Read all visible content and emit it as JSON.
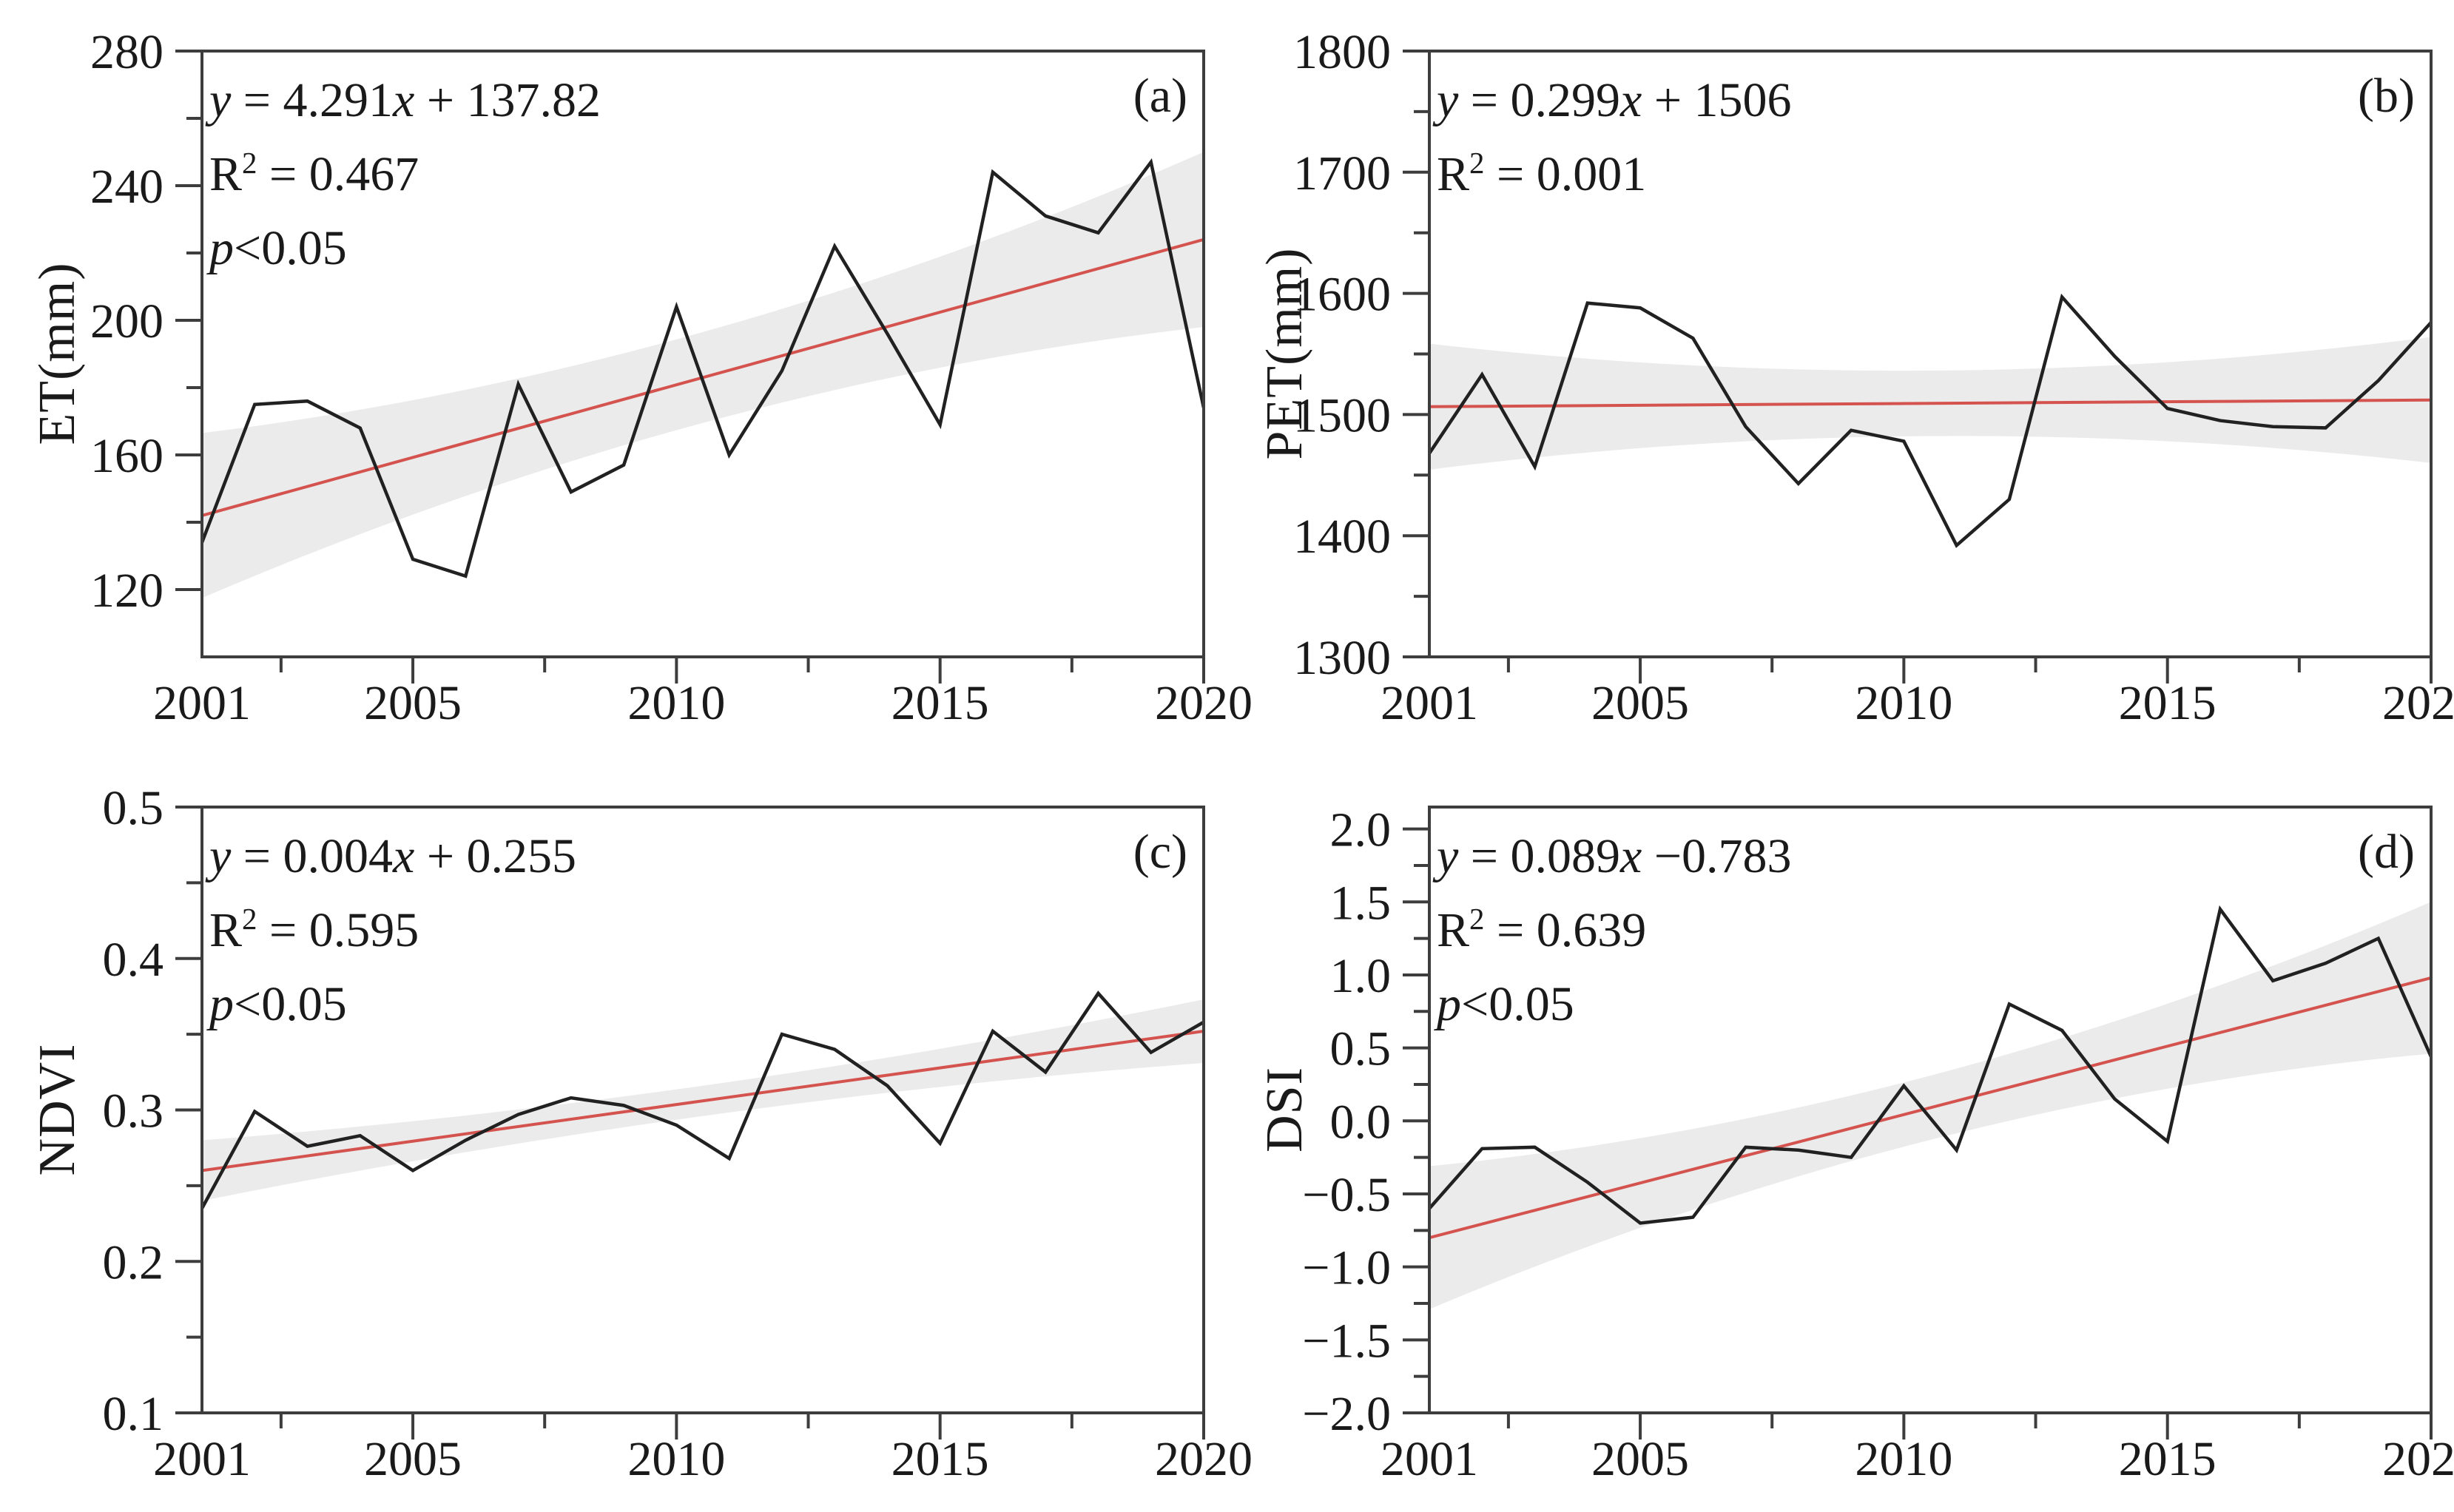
{
  "figure": {
    "background": "#ffffff",
    "colors": {
      "data_line": "#212121",
      "trend_line": "#d4534e",
      "band_fill": "#ebebeb",
      "axis": "#3d3d3d",
      "text": "#1a1a1a"
    }
  },
  "x_axis": {
    "years": [
      2001,
      2002,
      2003,
      2004,
      2005,
      2006,
      2007,
      2008,
      2009,
      2010,
      2011,
      2012,
      2013,
      2014,
      2015,
      2016,
      2017,
      2018,
      2019,
      2020
    ],
    "range": [
      2001,
      2020
    ],
    "tick_labels": [
      "2001",
      "2005",
      "2010",
      "2015",
      "2020"
    ],
    "tick_label_years": [
      2001,
      2005,
      2010,
      2015,
      2020
    ],
    "major_tick_years": [
      2005,
      2010,
      2015,
      2020
    ],
    "minor_tick_years": [
      2002.5,
      2007.5,
      2012.5,
      2017.5
    ]
  },
  "chart_data": [
    {
      "id": "a",
      "type": "line",
      "label": "(a)",
      "y_label": "ET(mm)",
      "ylim": [
        100,
        280
      ],
      "y_major_ticks": [
        120,
        160,
        200,
        240,
        280
      ],
      "y_tick_labels": [
        "120",
        "160",
        "200",
        "240",
        "280"
      ],
      "y_minor_ticks": [
        140,
        180,
        220,
        260
      ],
      "series": [
        {
          "name": "ET(mm)",
          "values": [
            134,
            175,
            176,
            168,
            129,
            124,
            181,
            149,
            157,
            204,
            160,
            185,
            222,
            196,
            169,
            244,
            231,
            226,
            247,
            174
          ]
        }
      ],
      "trend": {
        "start": 142,
        "end": 224
      },
      "band": {
        "start": 24.5,
        "mid": 13.5,
        "end": 26
      },
      "annotation": {
        "eq_y": "y",
        "eq_mid": " = 4.291",
        "eq_x": "x",
        "eq_post": " + 137.82",
        "r2_base": "R",
        "r2_sup": "2",
        "r2_rest": " = 0.467",
        "p_var": "p",
        "p_rest": "<0.05"
      }
    },
    {
      "id": "b",
      "type": "line",
      "label": "(b)",
      "y_label": "PET(mm)",
      "ylim": [
        1300,
        1800
      ],
      "y_major_ticks": [
        1300,
        1400,
        1500,
        1600,
        1700,
        1800
      ],
      "y_tick_labels": [
        "1300",
        "1400",
        "1500",
        "1600",
        "1700",
        "1800"
      ],
      "y_minor_ticks": [
        1350,
        1450,
        1550,
        1650,
        1750
      ],
      "series": [
        {
          "name": "PET(mm)",
          "values": [
            1468,
            1533,
            1457,
            1592,
            1588,
            1563,
            1490,
            1443,
            1487,
            1478,
            1392,
            1430,
            1597,
            1548,
            1505,
            1495,
            1490,
            1489,
            1528,
            1576
          ]
        }
      ],
      "trend": {
        "start": 1506.5,
        "end": 1512
      },
      "band": {
        "start": 52,
        "mid": 27,
        "end": 52
      },
      "annotation": {
        "eq_y": "y",
        "eq_mid": " = 0.299",
        "eq_x": "x",
        "eq_post": " + 1506",
        "r2_base": "R",
        "r2_sup": "2",
        "r2_rest": " = 0.001"
      }
    },
    {
      "id": "c",
      "type": "line",
      "label": "(c)",
      "y_label": "NDVI",
      "ylim": [
        0.1,
        0.5
      ],
      "y_major_ticks": [
        0.1,
        0.2,
        0.3,
        0.4,
        0.5
      ],
      "y_tick_labels": [
        "0.1",
        "0.2",
        "0.3",
        "0.4",
        "0.5"
      ],
      "y_minor_ticks": [
        0.15,
        0.25,
        0.35,
        0.45
      ],
      "series": [
        {
          "name": "NDVI",
          "values": [
            0.235,
            0.299,
            0.276,
            0.283,
            0.26,
            0.28,
            0.297,
            0.308,
            0.303,
            0.29,
            0.268,
            0.35,
            0.34,
            0.316,
            0.278,
            0.352,
            0.325,
            0.377,
            0.338,
            0.358
          ]
        }
      ],
      "trend": {
        "start": 0.26,
        "end": 0.352
      },
      "band": {
        "start": 0.02,
        "mid": 0.01,
        "end": 0.021
      },
      "annotation": {
        "eq_y": "y",
        "eq_mid": " = 0.004",
        "eq_x": "x",
        "eq_post": " + 0.255",
        "r2_base": "R",
        "r2_sup": "2",
        "r2_rest": " = 0.595",
        "p_var": "p",
        "p_rest": "<0.05"
      }
    },
    {
      "id": "d",
      "type": "line",
      "label": "(d)",
      "y_label": "DSI",
      "ylim": [
        -2.0,
        2.15
      ],
      "y_major_ticks": [
        -2.0,
        -1.5,
        -1.0,
        -0.5,
        0.0,
        0.5,
        1.0,
        1.5,
        2.0
      ],
      "y_tick_labels": [
        "−2.0",
        "−1.5",
        "−1.0",
        "−0.5",
        "0.0",
        "0.5",
        "1.0",
        "1.5",
        "2.0"
      ],
      "y_minor_ticks": [
        -1.75,
        -1.25,
        -0.75,
        -0.25,
        0.25,
        0.75,
        1.25,
        1.75
      ],
      "series": [
        {
          "name": "DSI",
          "values": [
            -0.6,
            -0.19,
            -0.18,
            -0.42,
            -0.7,
            -0.66,
            -0.18,
            -0.2,
            -0.25,
            0.24,
            -0.2,
            0.8,
            0.62,
            0.15,
            -0.14,
            1.45,
            0.96,
            1.08,
            1.25,
            0.44
          ]
        }
      ],
      "trend": {
        "start": -0.8,
        "end": 0.98
      },
      "band": {
        "start": 0.49,
        "mid": 0.22,
        "end": 0.52
      },
      "annotation": {
        "eq_y": "y",
        "eq_mid": " = 0.089",
        "eq_x": "x",
        "eq_post": " −0.783",
        "r2_base": "R",
        "r2_sup": "2",
        "r2_rest": " = 0.639",
        "p_var": "p",
        "p_rest": "<0.05"
      }
    }
  ]
}
